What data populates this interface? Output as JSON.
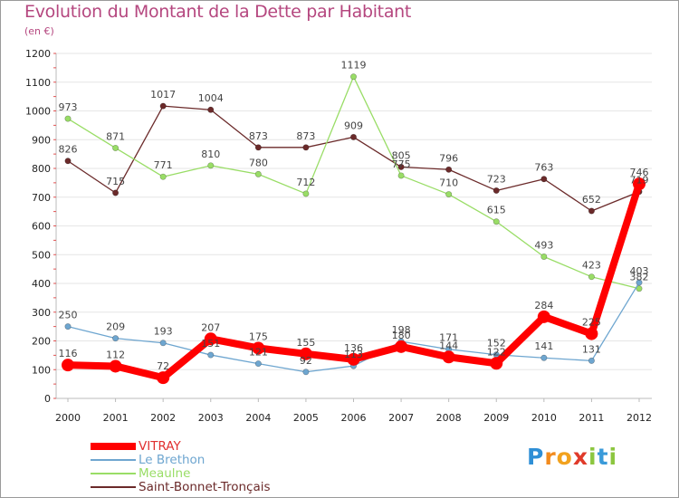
{
  "title": "Evolution du Montant de la Dette par Habitant",
  "subtitle": "(en €)",
  "logo": {
    "letters": [
      "P",
      "r",
      "o",
      "x",
      "i",
      "t",
      "i"
    ],
    "colors": [
      "#2f8fd6",
      "#f28b1e",
      "#f2a21e",
      "#e03a2a",
      "#8cc63f",
      "#3a9ad9",
      "#8cc63f"
    ]
  },
  "chart_data": {
    "type": "line",
    "x": [
      "2000",
      "2001",
      "2002",
      "2003",
      "2004",
      "2005",
      "2006",
      "2007",
      "2008",
      "2009",
      "2010",
      "2011",
      "2012"
    ],
    "ylim": [
      0,
      1200
    ],
    "yticks": [
      0,
      100,
      200,
      300,
      400,
      500,
      600,
      700,
      800,
      900,
      1000,
      1100,
      1200
    ],
    "grid": true,
    "legend_position": "bottom-left",
    "series": [
      {
        "name": "VITRAY",
        "color": "#ff0000",
        "values": [
          116,
          112,
          72,
          207,
          175,
          155,
          136,
          180,
          144,
          122,
          284,
          225,
          746
        ]
      },
      {
        "name": "Le Brethon",
        "color": "#6ea6d0",
        "values": [
          250,
          209,
          193,
          151,
          121,
          92,
          113,
          198,
          171,
          152,
          141,
          131,
          403
        ]
      },
      {
        "name": "Meaulne",
        "color": "#99dd66",
        "values": [
          973,
          871,
          771,
          810,
          780,
          712,
          1119,
          775,
          710,
          615,
          493,
          423,
          382
        ]
      },
      {
        "name": "Saint-Bonnet-Tronçais",
        "color": "#6b2a2a",
        "values": [
          826,
          715,
          1017,
          1004,
          873,
          873,
          909,
          805,
          796,
          723,
          763,
          652,
          719
        ]
      }
    ]
  }
}
